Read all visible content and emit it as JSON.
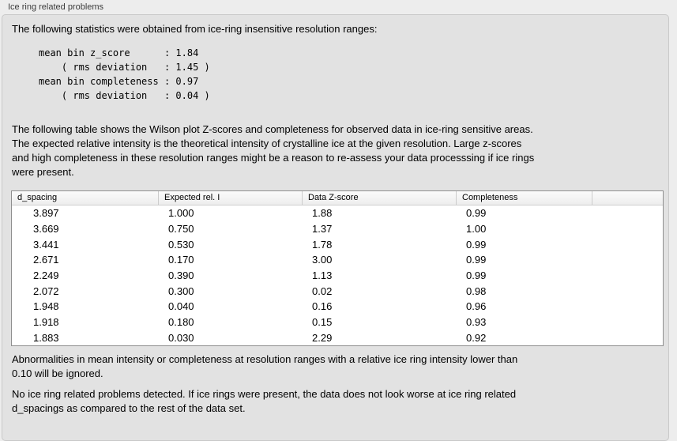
{
  "panel": {
    "title": "Ice ring related problems"
  },
  "intro": "The following statistics were obtained from ice-ring insensitive resolution ranges:",
  "stats_block": "mean bin z_score      : 1.84\n    ( rms deviation   : 1.45 )\nmean bin completeness : 0.97\n    ( rms deviation   : 0.04 )",
  "stats": {
    "mean_bin_z_score": "1.84",
    "z_score_rms_deviation": "1.45",
    "mean_bin_completeness": "0.97",
    "completeness_rms_deviation": "0.04"
  },
  "description": "The following table shows the Wilson plot Z-scores and completeness for observed data in ice-ring sensitive areas.\nThe expected relative intensity is the theoretical intensity of crystalline ice at the given resolution. Large z-scores\nand high completeness in these resolution ranges might be a reason to re-assess your data processsing if ice rings\nwere present.",
  "table": {
    "columns": [
      "d_spacing",
      "Expected rel. I",
      "Data Z-score",
      "Completeness"
    ],
    "rows": [
      [
        "3.897",
        "1.000",
        "1.88",
        "0.99"
      ],
      [
        "3.669",
        "0.750",
        "1.37",
        "1.00"
      ],
      [
        "3.441",
        "0.530",
        "1.78",
        "0.99"
      ],
      [
        "2.671",
        "0.170",
        "3.00",
        "0.99"
      ],
      [
        "2.249",
        "0.390",
        "1.13",
        "0.99"
      ],
      [
        "2.072",
        "0.300",
        "0.02",
        "0.98"
      ],
      [
        "1.948",
        "0.040",
        "0.16",
        "0.96"
      ],
      [
        "1.918",
        "0.180",
        "0.15",
        "0.93"
      ],
      [
        "1.883",
        "0.030",
        "2.29",
        "0.92"
      ]
    ]
  },
  "notes": {
    "abnormalities": "Abnormalities in mean intensity or completeness at resolution ranges with a relative ice ring intensity lower than\n0.10 will be ignored.",
    "conclusion": "No ice ring related problems detected. If ice rings were present, the data does not look worse at ice ring related\nd_spacings as compared to the rest of the data set."
  },
  "colors": {
    "window_background": "#ededed",
    "groupbox_background": "#e2e2e2",
    "table_border": "#8f8f8f",
    "header_separator": "#cccccc"
  }
}
